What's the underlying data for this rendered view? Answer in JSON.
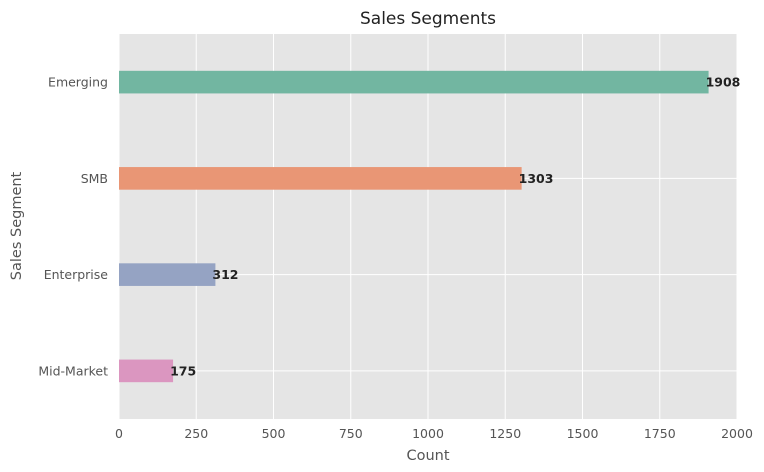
{
  "chart_data": {
    "type": "bar",
    "orientation": "horizontal",
    "title": "Sales Segments",
    "xlabel": "Count",
    "ylabel": "Sales Segment",
    "categories": [
      "Emerging",
      "SMB",
      "Enterprise",
      "Mid-Market"
    ],
    "values": [
      1908,
      1303,
      312,
      175
    ],
    "colors": [
      "#72b6a1",
      "#e99675",
      "#95a3c3",
      "#db96c0"
    ],
    "xlim": [
      0,
      2000
    ],
    "xticks": [
      0,
      250,
      500,
      750,
      1000,
      1250,
      1500,
      1750,
      2000
    ],
    "grid": true,
    "background": "#e5e5e5",
    "grid_color": "#ffffff"
  }
}
